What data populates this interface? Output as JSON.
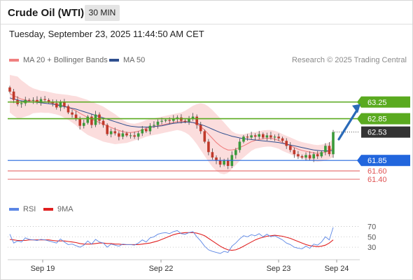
{
  "header": {
    "title": "Crude Oil (WTI)",
    "timeframe": "30 MIN"
  },
  "timestamp": "Tuesday, September 23, 2025 11:44:50 AM CET",
  "credit": "Research © 2025 Trading Central",
  "colors": {
    "up": "#3a9a3a",
    "down": "#c0392b",
    "bands": "#fbd9d9",
    "ma20": "#f08080",
    "ma50": "#2f4f8f",
    "resistance": "#5aaa1f",
    "support_blue": "#2266dd",
    "support_red": "#e05555",
    "current": "#333333",
    "arrow": "#2a6ab8",
    "rsi": "#5b86e5",
    "rsi_ma": "#e02020"
  },
  "chart_data": [
    {
      "type": "candlestick",
      "title": "",
      "legend": [
        {
          "name": "MA 20 + Bollinger Bands",
          "color": "#f08080"
        },
        {
          "name": "MA 50",
          "color": "#2f4f8f"
        }
      ],
      "legend_position": "top-left",
      "x_ticks": [
        "Sep 19",
        "Sep 22",
        "Sep 23",
        "Sep 24"
      ],
      "ylim": [
        61.3,
        63.9
      ],
      "grid": false,
      "levels": [
        {
          "label": "63.25",
          "value": 63.25,
          "kind": "resistance"
        },
        {
          "label": "62.85",
          "value": 62.85,
          "kind": "resistance"
        },
        {
          "label": "62.53",
          "value": 62.53,
          "kind": "current"
        },
        {
          "label": "61.85",
          "value": 61.85,
          "kind": "support"
        },
        {
          "label": "61.60",
          "value": 61.6,
          "kind": "support-minor"
        },
        {
          "label": "61.40",
          "value": 61.4,
          "kind": "support-minor"
        }
      ],
      "close": [
        63.5,
        63.3,
        63.2,
        63.22,
        63.3,
        63.28,
        63.3,
        63.25,
        63.32,
        63.3,
        63.25,
        63.22,
        63.12,
        63.25,
        63.15,
        63.0,
        62.95,
        62.85,
        62.68,
        62.75,
        62.9,
        62.7,
        62.95,
        62.8,
        62.7,
        62.48,
        62.55,
        62.5,
        62.42,
        62.5,
        62.45,
        62.45,
        62.42,
        62.5,
        62.6,
        62.55,
        62.68,
        62.7,
        62.78,
        62.8,
        62.82,
        62.8,
        62.85,
        62.88,
        62.8,
        62.78,
        62.85,
        62.9,
        62.7,
        62.55,
        62.3,
        62.05,
        61.92,
        61.85,
        61.75,
        61.85,
        61.72,
        61.98,
        62.1,
        62.3,
        62.42,
        62.4,
        62.45,
        62.42,
        62.48,
        62.4,
        62.45,
        62.4,
        62.42,
        62.38,
        62.32,
        62.2,
        62.1,
        62.0,
        61.95,
        61.92,
        61.98,
        61.9,
        62.0,
        61.95,
        62.05,
        62.2,
        62.0,
        62.53
      ],
      "ma20": [
        63.45,
        63.4,
        63.36,
        63.32,
        63.3,
        63.28,
        63.28,
        63.27,
        63.26,
        63.25,
        63.24,
        63.22,
        63.2,
        63.18,
        63.15,
        63.12,
        63.08,
        63.04,
        62.98,
        62.93,
        62.88,
        62.84,
        62.8,
        62.76,
        62.72,
        62.68,
        62.64,
        62.6,
        62.57,
        62.54,
        62.52,
        62.52,
        62.53,
        62.55,
        62.58,
        62.62,
        62.64,
        62.66,
        62.68,
        62.7,
        62.72,
        62.74,
        62.76,
        62.78,
        62.78,
        62.78,
        62.78,
        62.76,
        62.72,
        62.66,
        62.58,
        62.48,
        62.38,
        62.28,
        62.2,
        62.14,
        62.1,
        62.1,
        62.12,
        62.16,
        62.2,
        62.25,
        62.3,
        62.33,
        62.35,
        62.37,
        62.38,
        62.38,
        62.36,
        62.33,
        62.28,
        62.24,
        62.2,
        62.16,
        62.12,
        62.09,
        62.07,
        62.05,
        62.03,
        62.02,
        62.03,
        62.05,
        62.08,
        62.15
      ],
      "ma50": [
        63.35,
        63.32,
        63.3,
        63.28,
        63.27,
        63.26,
        63.25,
        63.24,
        63.23,
        63.22,
        63.21,
        63.2,
        63.18,
        63.16,
        63.14,
        63.12,
        63.1,
        63.08,
        63.05,
        63.02,
        62.99,
        62.96,
        62.93,
        62.9,
        62.87,
        62.84,
        62.81,
        62.78,
        62.75,
        62.72,
        62.69,
        62.67,
        62.66,
        62.65,
        62.65,
        62.65,
        62.65,
        62.66,
        62.67,
        62.68,
        62.7,
        62.72,
        62.74,
        62.75,
        62.76,
        62.77,
        62.77,
        62.76,
        62.74,
        62.71,
        62.68,
        62.64,
        62.6,
        62.56,
        62.52,
        62.49,
        62.46,
        62.43,
        62.41,
        62.39,
        62.37,
        62.36,
        62.35,
        62.34,
        62.33,
        62.32,
        62.31,
        62.3,
        62.29,
        62.28,
        62.26,
        62.24,
        62.22,
        62.2,
        62.18,
        62.16,
        62.14,
        62.12,
        62.1,
        62.09,
        62.08,
        62.08,
        62.08,
        62.09
      ],
      "band_width": [
        0.45,
        0.48,
        0.5,
        0.45,
        0.4,
        0.35,
        0.3,
        0.28,
        0.26,
        0.26,
        0.25,
        0.25,
        0.25,
        0.26,
        0.28,
        0.3,
        0.32,
        0.35,
        0.38,
        0.4,
        0.42,
        0.42,
        0.42,
        0.42,
        0.42,
        0.4,
        0.38,
        0.36,
        0.32,
        0.28,
        0.25,
        0.22,
        0.2,
        0.2,
        0.2,
        0.2,
        0.2,
        0.2,
        0.2,
        0.2,
        0.2,
        0.2,
        0.2,
        0.2,
        0.22,
        0.26,
        0.32,
        0.4,
        0.48,
        0.56,
        0.62,
        0.66,
        0.68,
        0.68,
        0.66,
        0.62,
        0.55,
        0.45,
        0.38,
        0.32,
        0.28,
        0.25,
        0.22,
        0.2,
        0.2,
        0.2,
        0.2,
        0.2,
        0.2,
        0.2,
        0.2,
        0.2,
        0.2,
        0.2,
        0.2,
        0.2,
        0.2,
        0.2,
        0.2,
        0.2,
        0.2,
        0.2,
        0.2,
        0.22
      ]
    },
    {
      "type": "line",
      "legend": [
        {
          "name": "RSI",
          "color": "#5b86e5"
        },
        {
          "name": "9MA",
          "color": "#e02020"
        }
      ],
      "y_ticks": [
        "70",
        "50",
        "30"
      ],
      "ylim": [
        10,
        80
      ],
      "reference_lines": [
        70,
        50,
        30
      ],
      "rsi": [
        55,
        38,
        42,
        40,
        48,
        45,
        44,
        43,
        45,
        44,
        42,
        40,
        38,
        46,
        40,
        35,
        36,
        33,
        30,
        34,
        42,
        36,
        45,
        40,
        38,
        30,
        36,
        34,
        32,
        36,
        35,
        35,
        34,
        38,
        44,
        40,
        48,
        50,
        55,
        57,
        58,
        56,
        60,
        62,
        56,
        55,
        58,
        60,
        50,
        42,
        32,
        25,
        22,
        20,
        18,
        22,
        20,
        32,
        38,
        46,
        52,
        50,
        54,
        52,
        56,
        50,
        55,
        50,
        52,
        48,
        44,
        38,
        35,
        30,
        28,
        27,
        32,
        28,
        36,
        34,
        40,
        50,
        44,
        68
      ],
      "rsi_ma": [
        45,
        44,
        43,
        43,
        43,
        44,
        44,
        44,
        44,
        44,
        44,
        43,
        42,
        42,
        42,
        41,
        40,
        39,
        37,
        36,
        36,
        36,
        37,
        38,
        38,
        37,
        37,
        36,
        36,
        35,
        35,
        35,
        35,
        35,
        36,
        37,
        38,
        40,
        42,
        45,
        48,
        51,
        54,
        56,
        57,
        58,
        58,
        58,
        57,
        55,
        52,
        47,
        42,
        37,
        32,
        28,
        25,
        24,
        25,
        28,
        32,
        36,
        40,
        44,
        47,
        49,
        51,
        52,
        53,
        52,
        51,
        49,
        47,
        44,
        41,
        38,
        35,
        33,
        32,
        31,
        32,
        34,
        38,
        44
      ]
    }
  ]
}
